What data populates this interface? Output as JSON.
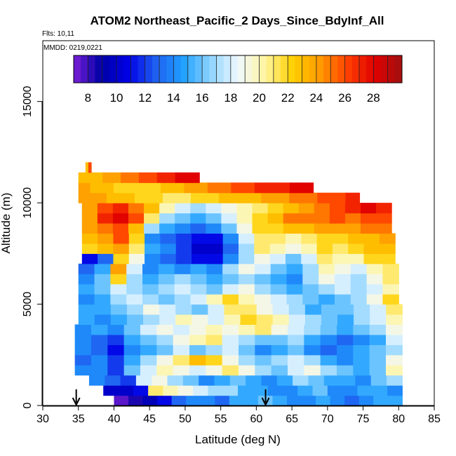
{
  "title": "ATOM2 Northeast_Pacific_2 Days_Since_BdyInf_All",
  "flights_note": "Flts: 10,11",
  "date_note": "MMDD: 0219,0221",
  "chart_data": {
    "type": "heatmap",
    "xlabel": "Latitude (deg N)",
    "ylabel": "Altitude (m)",
    "xlim": [
      30,
      85
    ],
    "ylim": [
      0,
      18000
    ],
    "x_ticks": [
      30,
      35,
      40,
      45,
      50,
      55,
      60,
      65,
      70,
      75,
      80,
      85
    ],
    "y_ticks": [
      0,
      5000,
      10000,
      15000
    ],
    "colorbar": {
      "ticks": [
        8,
        10,
        12,
        14,
        16,
        18,
        20,
        22,
        24,
        26,
        28
      ],
      "range": [
        7,
        30
      ],
      "colors": [
        "#7a1fd6",
        "#0000a6",
        "#0000e6",
        "#1f5ff0",
        "#1fa0ff",
        "#8ed4ff",
        "#f0f8ff",
        "#fff5a0",
        "#ffd000",
        "#ff9a00",
        "#ff4000",
        "#e00000",
        "#a01010"
      ]
    },
    "arrows_latitude": [
      34.7,
      61.3
    ],
    "bands": [
      {
        "alt_bottom": 0,
        "alt_top": 500,
        "lat_start": 40.0,
        "lat_end": 80.5,
        "values": [
          7.5,
          8.5,
          9.5,
          11,
          13,
          14,
          14,
          13,
          15,
          15,
          16,
          15,
          14,
          14,
          15,
          14,
          13,
          14,
          15,
          15
        ]
      },
      {
        "alt_bottom": 500,
        "alt_top": 1000,
        "lat_start": 38.5,
        "lat_end": 80.5,
        "values": [
          10,
          10,
          11,
          21,
          20,
          19,
          18,
          17,
          17,
          15,
          15,
          14,
          14,
          15,
          16,
          14,
          14,
          15,
          15,
          14
        ]
      },
      {
        "alt_bottom": 1000,
        "alt_top": 1500,
        "lat_start": 36.5,
        "lat_end": 80.5,
        "values": [
          14,
          13,
          12,
          18,
          19,
          17,
          16,
          14,
          15,
          16,
          15,
          14,
          15,
          17,
          16,
          15,
          15,
          14,
          16,
          17
        ]
      },
      {
        "alt_bottom": 1500,
        "alt_top": 2000,
        "lat_start": 34.5,
        "lat_end": 80.5,
        "values": [
          14,
          14,
          12,
          16,
          18,
          20,
          19,
          18,
          19,
          21,
          19,
          17,
          16,
          18,
          19,
          17,
          16,
          15,
          16,
          20
        ]
      },
      {
        "alt_bottom": 2000,
        "alt_top": 2500,
        "lat_start": 34.5,
        "lat_end": 80.5,
        "values": [
          13,
          14,
          12,
          15,
          17,
          19,
          21,
          23,
          22,
          19,
          17,
          16,
          17,
          18,
          17,
          15,
          14,
          15,
          16,
          19
        ]
      },
      {
        "alt_bottom": 2500,
        "alt_top": 3000,
        "lat_start": 34.5,
        "lat_end": 80.5,
        "values": [
          14,
          13,
          11,
          14,
          15,
          16,
          18,
          16,
          17,
          18,
          16,
          14,
          15,
          16,
          14,
          13,
          14,
          15,
          16,
          17
        ]
      },
      {
        "alt_bottom": 3000,
        "alt_top": 3500,
        "lat_start": 34.5,
        "lat_end": 80.5,
        "values": [
          14,
          13,
          12,
          15,
          16,
          17,
          19,
          20,
          21,
          18,
          17,
          16,
          16,
          17,
          15,
          14,
          13,
          14,
          15,
          18
        ]
      },
      {
        "alt_bottom": 3500,
        "alt_top": 4000,
        "lat_start": 34.5,
        "lat_end": 80.5,
        "values": [
          14,
          15,
          14,
          16,
          18,
          19,
          18,
          19,
          20,
          19,
          20,
          21,
          19,
          18,
          17,
          16,
          15,
          16,
          17,
          19
        ]
      },
      {
        "alt_bottom": 4000,
        "alt_top": 4500,
        "lat_start": 35.0,
        "lat_end": 80.5,
        "values": [
          15,
          14,
          15,
          16,
          17,
          18,
          20,
          19,
          18,
          20,
          22,
          21,
          20,
          18,
          17,
          16,
          15,
          17,
          18,
          20
        ]
      },
      {
        "alt_bottom": 4500,
        "alt_top": 5000,
        "lat_start": 35.0,
        "lat_end": 80.5,
        "values": [
          15,
          15,
          16,
          17,
          19,
          18,
          17,
          16,
          18,
          21,
          21,
          19,
          18,
          17,
          15,
          16,
          16,
          17,
          18,
          21
        ]
      },
      {
        "alt_bottom": 5000,
        "alt_top": 5500,
        "lat_start": 35.0,
        "lat_end": 80.0,
        "values": [
          14,
          15,
          17,
          18,
          17,
          16,
          17,
          18,
          20,
          22,
          20,
          19,
          18,
          17,
          16,
          15,
          16,
          17,
          19,
          22
        ]
      },
      {
        "alt_bottom": 5500,
        "alt_top": 6000,
        "lat_start": 35.0,
        "lat_end": 80.0,
        "values": [
          15,
          16,
          18,
          17,
          16,
          17,
          18,
          17,
          16,
          18,
          19,
          17,
          16,
          15,
          16,
          17,
          18,
          17,
          18,
          20
        ]
      },
      {
        "alt_bottom": 6000,
        "alt_top": 6500,
        "lat_start": 35.0,
        "lat_end": 80.0,
        "values": [
          14,
          16,
          22,
          17,
          15,
          16,
          17,
          16,
          15,
          16,
          17,
          16,
          15,
          14,
          17,
          19,
          18,
          17,
          19,
          21
        ]
      },
      {
        "alt_bottom": 6500,
        "alt_top": 7000,
        "lat_start": 35.0,
        "lat_end": 80.0,
        "values": [
          13,
          15,
          24,
          18,
          14,
          15,
          14,
          15,
          14,
          17,
          19,
          18,
          16,
          15,
          17,
          20,
          19,
          18,
          20,
          21
        ]
      },
      {
        "alt_bottom": 7000,
        "alt_top": 7500,
        "lat_start": 35.5,
        "lat_end": 79.5,
        "values": [
          11,
          13,
          22,
          19,
          14,
          13,
          12,
          11,
          11,
          14,
          17,
          19,
          18,
          16,
          18,
          21,
          20,
          20,
          22,
          22
        ]
      },
      {
        "alt_bottom": 7500,
        "alt_top": 8000,
        "lat_start": 35.5,
        "lat_end": 79.5,
        "values": [
          22,
          23,
          24,
          21,
          15,
          14,
          12,
          10,
          10,
          13,
          17,
          21,
          20,
          19,
          20,
          22,
          21,
          22,
          23,
          23
        ]
      },
      {
        "alt_bottom": 8000,
        "alt_top": 8500,
        "lat_start": 35.5,
        "lat_end": 79.5,
        "values": [
          23,
          24,
          26,
          22,
          14,
          13,
          12,
          11,
          11,
          14,
          18,
          21,
          21,
          20,
          21,
          22,
          22,
          23,
          23,
          24
        ]
      },
      {
        "alt_bottom": 8500,
        "alt_top": 9000,
        "lat_start": 35.5,
        "lat_end": 79.0,
        "values": [
          24,
          25,
          26,
          23,
          17,
          15,
          14,
          13,
          14,
          16,
          19,
          22,
          22,
          23,
          23,
          24,
          24,
          24,
          25,
          25
        ]
      },
      {
        "alt_bottom": 9000,
        "alt_top": 9500,
        "lat_start": 35.5,
        "lat_end": 79.0,
        "values": [
          24,
          27,
          28,
          26,
          21,
          17,
          16,
          15,
          16,
          18,
          20,
          22,
          23,
          25,
          25,
          25,
          26,
          25,
          26,
          26
        ]
      },
      {
        "alt_bottom": 9500,
        "alt_top": 10000,
        "lat_start": 35.5,
        "lat_end": 79.0,
        "values": [
          24,
          26,
          27,
          25,
          23,
          20,
          18,
          17,
          18,
          19,
          20,
          21,
          22,
          23,
          24,
          25,
          26,
          27,
          28,
          27
        ]
      },
      {
        "alt_bottom": 10000,
        "alt_top": 10500,
        "lat_start": 35.0,
        "lat_end": 74.5,
        "values": [
          24,
          24,
          23,
          23,
          22,
          22,
          21,
          21,
          22,
          22,
          23,
          23,
          23,
          24,
          24,
          25,
          25,
          26,
          26,
          27
        ]
      },
      {
        "alt_bottom": 10500,
        "alt_top": 11000,
        "lat_start": 35.0,
        "lat_end": 68.0,
        "values": [
          24,
          23,
          23,
          22,
          22,
          22,
          22,
          23,
          23,
          24,
          24,
          25,
          25,
          26,
          26,
          27,
          27,
          27,
          28,
          28
        ]
      },
      {
        "alt_bottom": 11000,
        "alt_top": 11500,
        "lat_start": 35.0,
        "lat_end": 52.0,
        "values": [
          23,
          23,
          23,
          23,
          24,
          24,
          24,
          25,
          25,
          25,
          26,
          26,
          26,
          27,
          27,
          27,
          28,
          28,
          28,
          28
        ]
      },
      {
        "alt_bottom": 11500,
        "alt_top": 12000,
        "lat_start": 36.0,
        "lat_end": 36.8,
        "values": [
          23,
          26
        ]
      }
    ]
  }
}
